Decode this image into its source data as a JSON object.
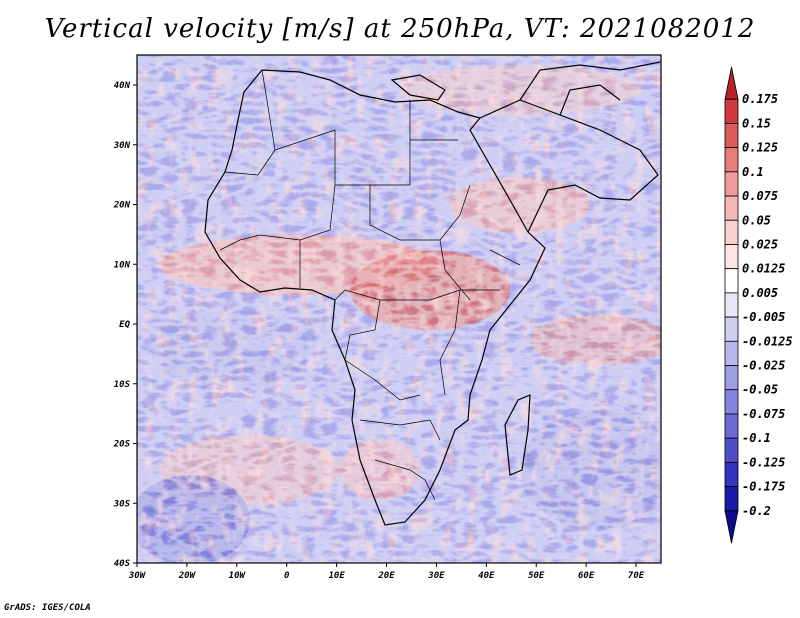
{
  "title": "Vertical velocity [m/s] at 250hPa, VT: 2021082012",
  "footer": "GrADS: IGES/COLA",
  "map": {
    "region": "Africa",
    "lon_range": [
      -30,
      75
    ],
    "lat_range": [
      -40,
      45
    ],
    "x_ticks": [
      "30W",
      "20W",
      "10W",
      "0",
      "10E",
      "20E",
      "30E",
      "40E",
      "50E",
      "60E",
      "70E"
    ],
    "y_ticks": [
      "40N",
      "30N",
      "20N",
      "10N",
      "EQ",
      "10S",
      "20S",
      "30S",
      "40S"
    ]
  },
  "legend": {
    "colors": [
      "#b8222b",
      "#cf3a3e",
      "#dc5b5b",
      "#e77d7a",
      "#ef9c99",
      "#f4b9b6",
      "#f8d1cf",
      "#fbe6e4",
      "#ffffff",
      "#e7e6f7",
      "#cfcff0",
      "#b8b8ec",
      "#9f9fe6",
      "#8585de",
      "#6b6bd6",
      "#4f4fcc",
      "#3333bf",
      "#1a1aa8",
      "#0b0b8a"
    ],
    "labels": [
      "0.175",
      "0.15",
      "0.125",
      "0.1",
      "0.075",
      "0.05",
      "0.025",
      "0.0125",
      "0.005",
      "-0.005",
      "-0.0125",
      "-0.025",
      "-0.05",
      "-0.075",
      "-0.1",
      "-0.125",
      "-0.175",
      "-0.2"
    ]
  }
}
